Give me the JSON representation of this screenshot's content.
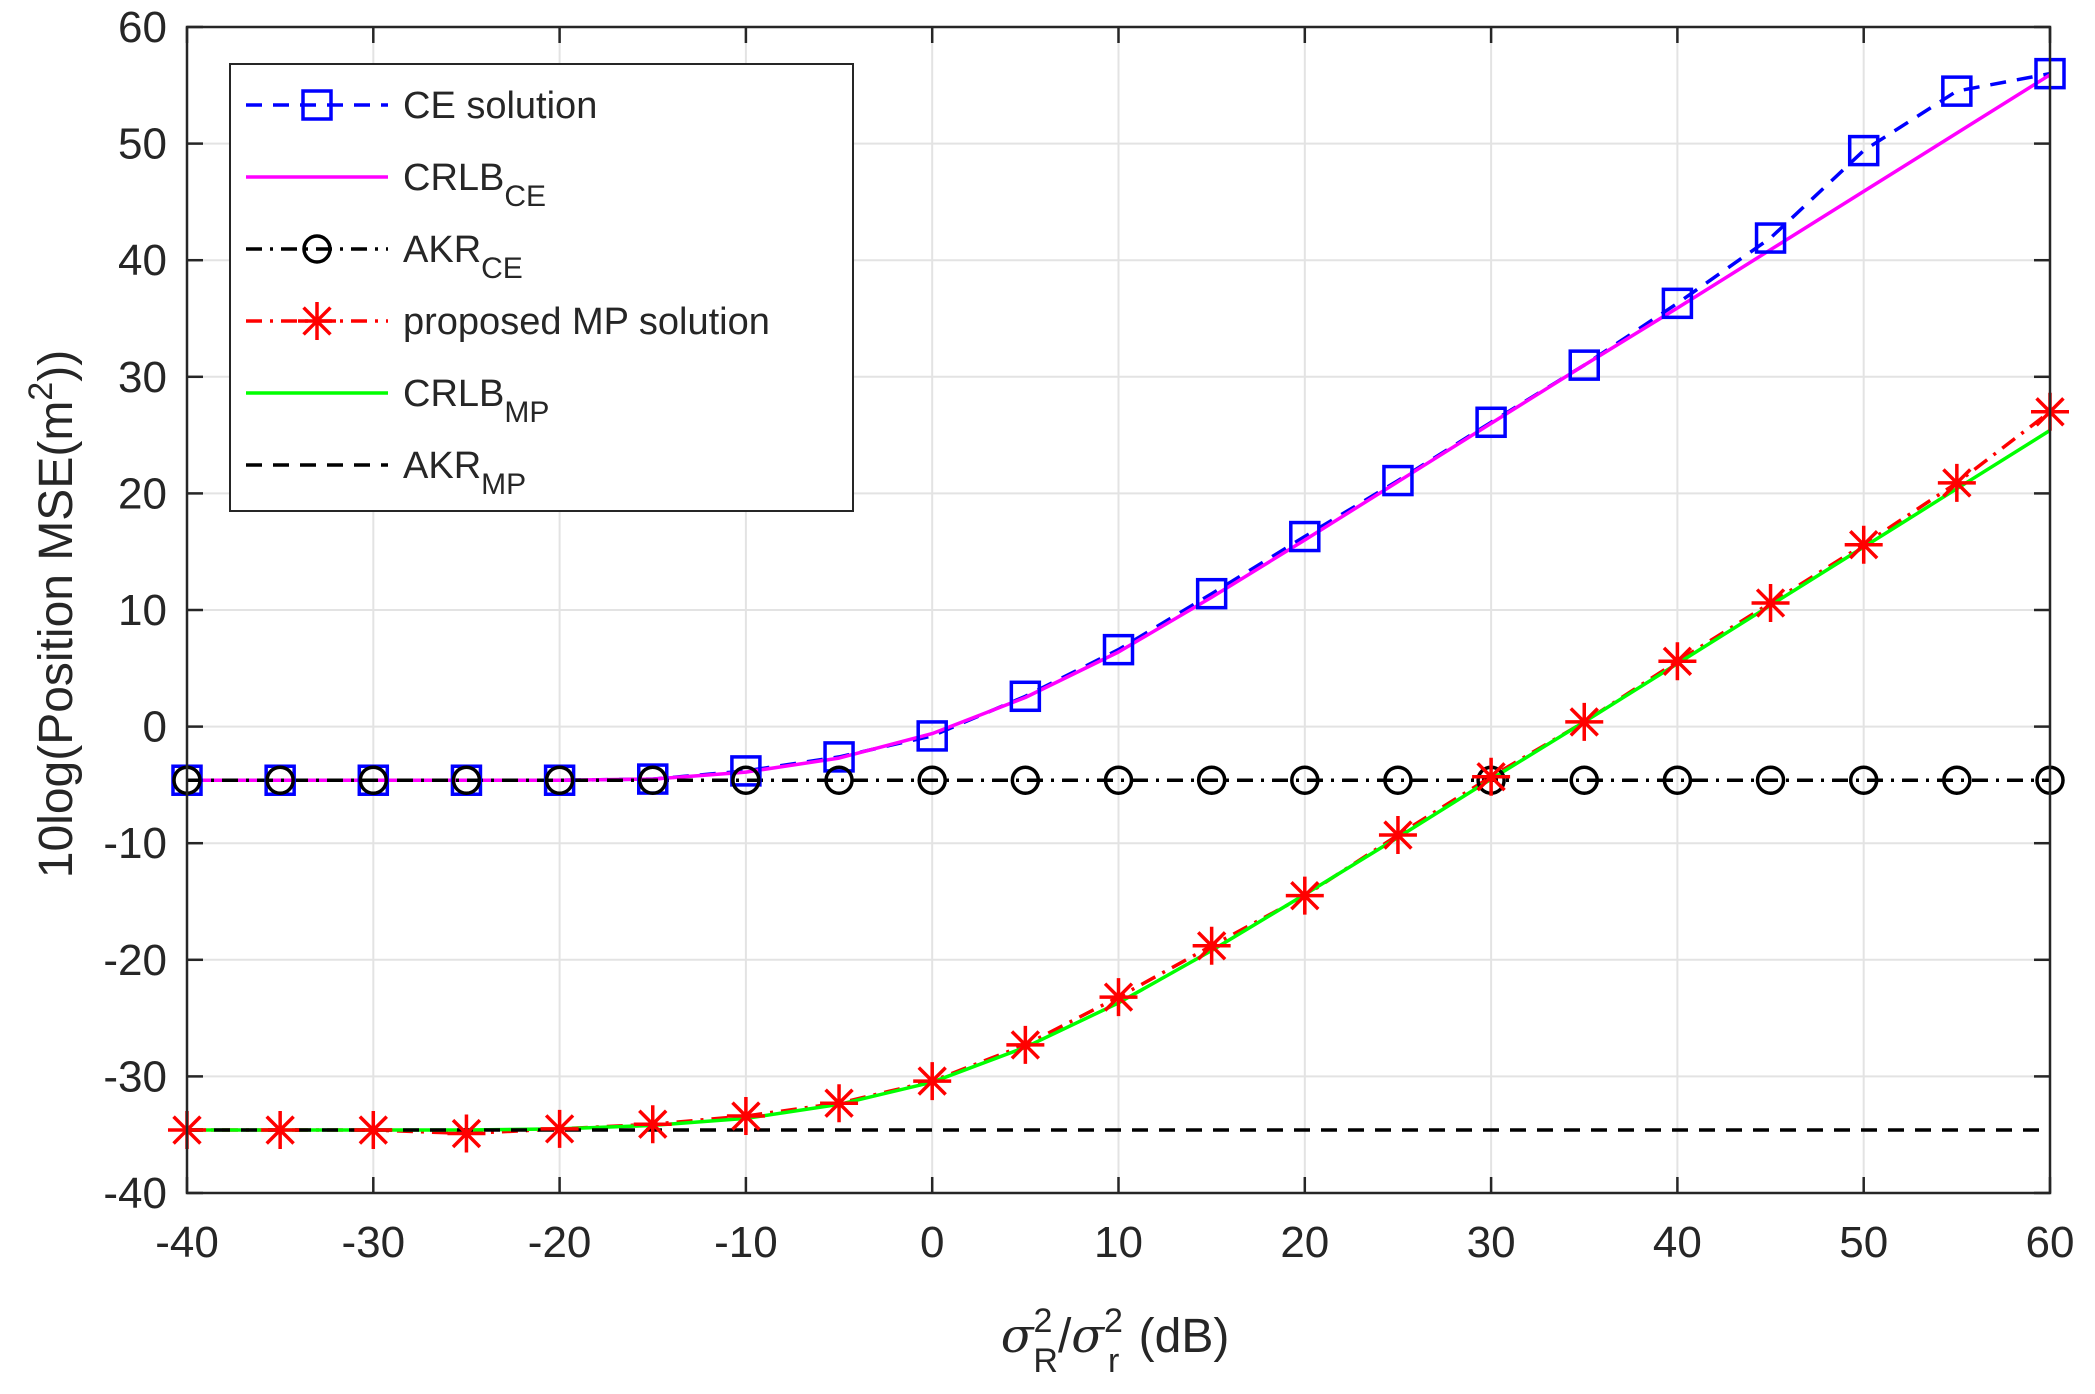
{
  "chart_data": {
    "type": "line",
    "title": "",
    "xlabel": {
      "sym1": "σ",
      "sup1": "2",
      "sub1": "R",
      "slash": "/",
      "sym2": "σ",
      "sup2": "2",
      "sub2": "r",
      "unit": " (dB)"
    },
    "ylabel": {
      "main": "10log(Position MSE(m",
      "sup": "2",
      "end": "))"
    },
    "xlim": [
      -40,
      60
    ],
    "ylim": [
      -40,
      60
    ],
    "xticks": [
      -40,
      -30,
      -20,
      -10,
      0,
      10,
      20,
      30,
      40,
      50,
      60
    ],
    "yticks": [
      -40,
      -30,
      -20,
      -10,
      0,
      10,
      20,
      30,
      40,
      50,
      60
    ],
    "grid": true,
    "legend_position": "top-left",
    "x": [
      -40,
      -35,
      -30,
      -25,
      -20,
      -15,
      -10,
      -5,
      0,
      5,
      10,
      15,
      20,
      25,
      30,
      35,
      40,
      45,
      50,
      55,
      60
    ],
    "series": [
      {
        "name": "CE solution",
        "sub": "",
        "color": "#0000FF",
        "dash": "dashed",
        "marker": "square",
        "values": [
          -4.6,
          -4.6,
          -4.6,
          -4.6,
          -4.6,
          -4.5,
          -3.8,
          -2.6,
          -0.8,
          2.6,
          6.6,
          11.4,
          16.3,
          21.1,
          26.1,
          31.0,
          36.3,
          41.9,
          49.4,
          54.5,
          56.0
        ]
      },
      {
        "name": "CRLB",
        "sub": "CE",
        "color": "#FF00FF",
        "dash": "solid",
        "marker": "none",
        "values": [
          -4.6,
          -4.6,
          -4.6,
          -4.6,
          -4.6,
          -4.5,
          -3.9,
          -2.7,
          -0.6,
          2.5,
          6.4,
          11.1,
          16.0,
          21.0,
          26.0,
          31.0,
          35.9,
          40.9,
          45.9,
          50.9,
          55.9
        ]
      },
      {
        "name": "AKR",
        "sub": "CE",
        "color": "#000000",
        "dash": "dashdot",
        "marker": "circle",
        "values": [
          -4.6,
          -4.6,
          -4.6,
          -4.6,
          -4.6,
          -4.6,
          -4.6,
          -4.6,
          -4.6,
          -4.6,
          -4.6,
          -4.6,
          -4.6,
          -4.6,
          -4.6,
          -4.6,
          -4.6,
          -4.6,
          -4.6,
          -4.6,
          -4.6
        ]
      },
      {
        "name": "proposed MP solution",
        "sub": "",
        "color": "#FF0000",
        "dash": "dashdot",
        "marker": "star",
        "values": [
          -34.6,
          -34.6,
          -34.6,
          -34.9,
          -34.5,
          -34.1,
          -33.4,
          -32.3,
          -30.4,
          -27.3,
          -23.2,
          -18.8,
          -14.5,
          -9.3,
          -4.3,
          0.4,
          5.6,
          10.6,
          15.6,
          20.9,
          27.0
        ]
      },
      {
        "name": "CRLB",
        "sub": "MP",
        "color": "#00FF00",
        "dash": "solid",
        "marker": "none",
        "values": [
          -34.6,
          -34.6,
          -34.6,
          -34.6,
          -34.5,
          -34.2,
          -33.6,
          -32.4,
          -30.5,
          -27.5,
          -23.7,
          -19.2,
          -14.4,
          -9.5,
          -4.5,
          0.4,
          5.4,
          10.4,
          15.4,
          20.4,
          25.4
        ]
      },
      {
        "name": "AKR",
        "sub": "MP",
        "color": "#000000",
        "dash": "dashed",
        "marker": "none",
        "values": [
          -34.6,
          -34.6,
          -34.6,
          -34.6,
          -34.6,
          -34.6,
          -34.6,
          -34.6,
          -34.6,
          -34.6,
          -34.6,
          -34.6,
          -34.6,
          -34.6,
          -34.6,
          -34.6,
          -34.6,
          -34.6,
          -34.6,
          -34.6,
          -34.6
        ]
      }
    ]
  }
}
